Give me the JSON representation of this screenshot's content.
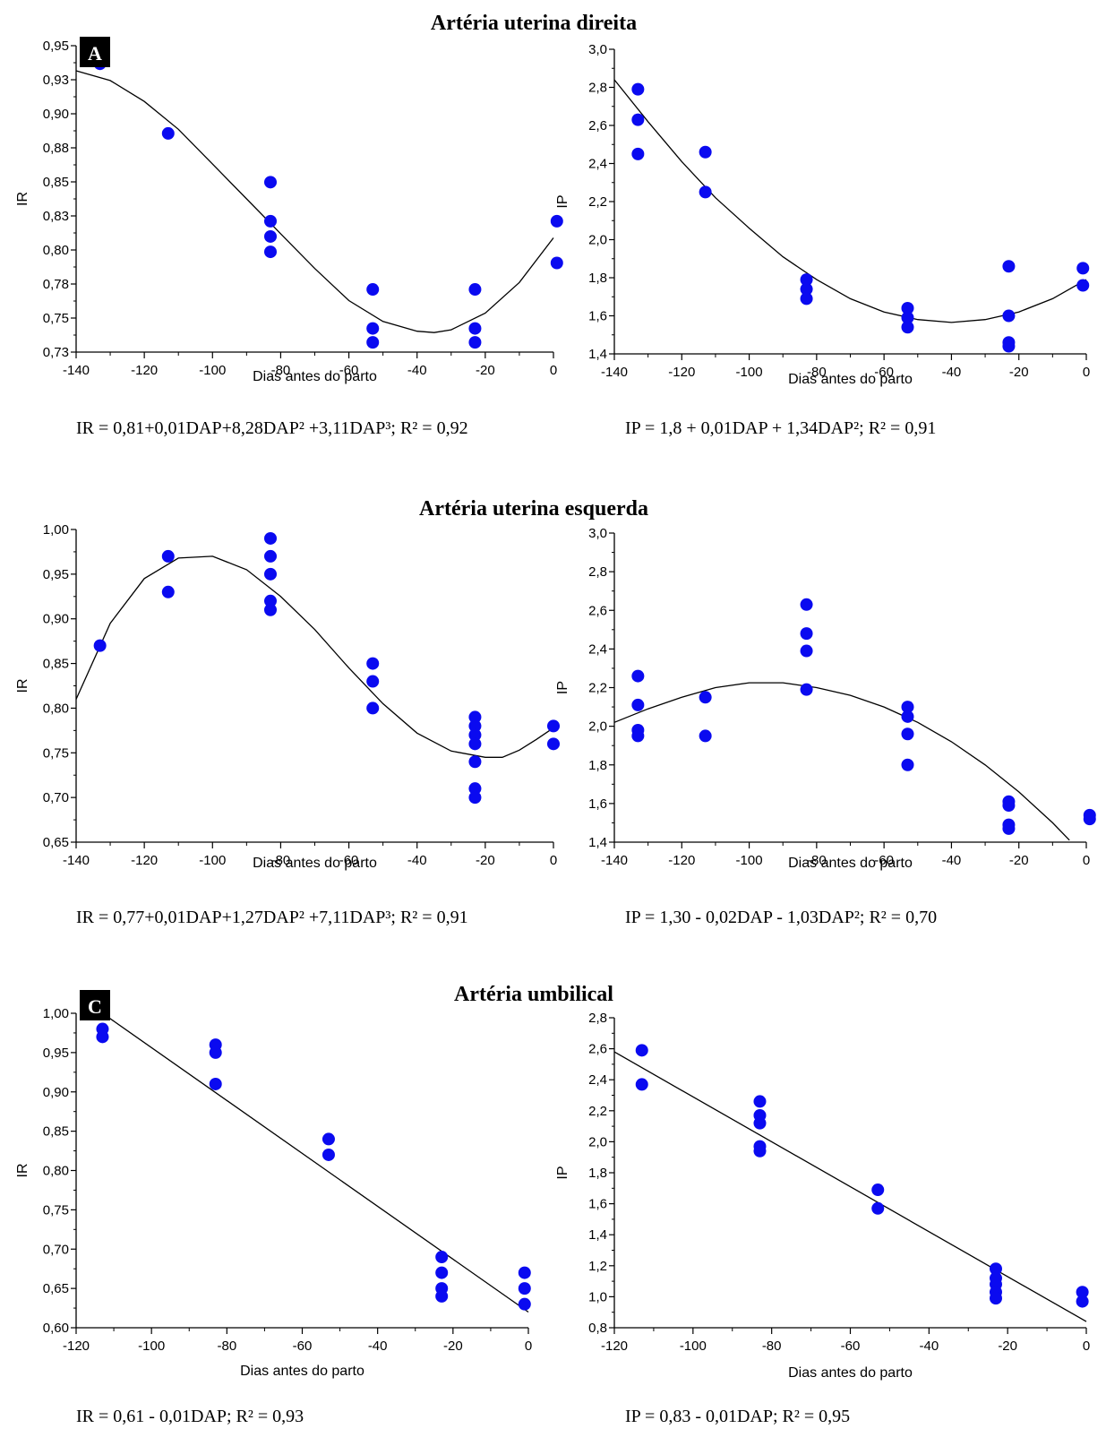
{
  "titles": [
    "Artéria uterina direita",
    "Artéria uterina esquerda",
    "Artéria umbilical"
  ],
  "colors": {
    "point": "#0a0af0",
    "line": "#000000",
    "axis": "#000000"
  },
  "chart_data": [
    {
      "type": "scatter",
      "panel_label": "A",
      "title": "Artéria uterina direita",
      "xlabel": "Dias antes do parto",
      "ylabel": "IR",
      "xlim": [
        -140,
        0
      ],
      "ylim": [
        0.73,
        0.95
      ],
      "xticks": [
        "-140",
        "-120",
        "-100",
        "-80",
        "-60",
        "-40",
        "-20",
        "0"
      ],
      "yticks": [
        "0,73",
        "0,75",
        "0,78",
        "0,80",
        "0,83",
        "0,85",
        "0,88",
        "0,90",
        "0,93",
        "0,95"
      ],
      "points": [
        [
          -133,
          0.937
        ],
        [
          -113,
          0.887
        ],
        [
          -83,
          0.852
        ],
        [
          -83,
          0.824
        ],
        [
          -83,
          0.813
        ],
        [
          -83,
          0.802
        ],
        [
          -53,
          0.775
        ],
        [
          -53,
          0.747
        ],
        [
          -53,
          0.737
        ],
        [
          -23,
          0.775
        ],
        [
          -23,
          0.747
        ],
        [
          -23,
          0.737
        ],
        [
          1,
          0.824
        ],
        [
          1,
          0.794
        ]
      ],
      "fit": [
        [
          -140,
          0.932
        ],
        [
          -130,
          0.925
        ],
        [
          -120,
          0.91
        ],
        [
          -110,
          0.89
        ],
        [
          -100,
          0.865
        ],
        [
          -90,
          0.84
        ],
        [
          -80,
          0.815
        ],
        [
          -70,
          0.79
        ],
        [
          -60,
          0.767
        ],
        [
          -50,
          0.752
        ],
        [
          -40,
          0.745
        ],
        [
          -35,
          0.744
        ],
        [
          -30,
          0.746
        ],
        [
          -20,
          0.758
        ],
        [
          -10,
          0.78
        ],
        [
          0,
          0.812
        ]
      ],
      "equation": "IR = 0,81+0,01DAP+8,28DAP² +3,11DAP³; R² = 0,92"
    },
    {
      "type": "scatter",
      "title": "Artéria uterina direita",
      "xlabel": "Dias antes do parto",
      "ylabel": "IP",
      "xlim": [
        -140,
        0
      ],
      "ylim": [
        1.4,
        3.0
      ],
      "xticks": [
        "-140",
        "-120",
        "-100",
        "-80",
        "-60",
        "-40",
        "-20",
        "0"
      ],
      "yticks": [
        "1,4",
        "1,6",
        "1,8",
        "2,0",
        "2,2",
        "2,4",
        "2,6",
        "2,8",
        "3,0"
      ],
      "points": [
        [
          -133,
          2.79
        ],
        [
          -133,
          2.63
        ],
        [
          -133,
          2.45
        ],
        [
          -113,
          2.46
        ],
        [
          -113,
          2.25
        ],
        [
          -83,
          1.79
        ],
        [
          -83,
          1.74
        ],
        [
          -83,
          1.69
        ],
        [
          -53,
          1.64
        ],
        [
          -53,
          1.59
        ],
        [
          -53,
          1.54
        ],
        [
          -23,
          1.86
        ],
        [
          -23,
          1.6
        ],
        [
          -23,
          1.46
        ],
        [
          -23,
          1.44
        ],
        [
          -1,
          1.85
        ],
        [
          -1,
          1.76
        ]
      ],
      "fit": [
        [
          -140,
          2.84
        ],
        [
          -130,
          2.62
        ],
        [
          -120,
          2.41
        ],
        [
          -110,
          2.22
        ],
        [
          -100,
          2.06
        ],
        [
          -90,
          1.91
        ],
        [
          -80,
          1.79
        ],
        [
          -70,
          1.69
        ],
        [
          -60,
          1.62
        ],
        [
          -50,
          1.58
        ],
        [
          -40,
          1.565
        ],
        [
          -30,
          1.58
        ],
        [
          -20,
          1.62
        ],
        [
          -10,
          1.69
        ],
        [
          0,
          1.79
        ]
      ],
      "equation": "IP = 1,8 + 0,01DAP + 1,34DAP²; R² = 0,91"
    },
    {
      "type": "scatter",
      "title": "Artéria uterina esquerda",
      "xlabel": "Dias antes do parto",
      "ylabel": "IR",
      "xlim": [
        -140,
        0
      ],
      "ylim": [
        0.65,
        1.0
      ],
      "xticks": [
        "-140",
        "-120",
        "-100",
        "-80",
        "-60",
        "-40",
        "-20",
        "0"
      ],
      "yticks": [
        "0,65",
        "0,70",
        "0,75",
        "0,80",
        "0,85",
        "0,90",
        "0,95",
        "1,00"
      ],
      "points": [
        [
          -133,
          0.87
        ],
        [
          -113,
          0.97
        ],
        [
          -113,
          0.93
        ],
        [
          -83,
          0.99
        ],
        [
          -83,
          0.97
        ],
        [
          -83,
          0.95
        ],
        [
          -83,
          0.92
        ],
        [
          -83,
          0.91
        ],
        [
          -53,
          0.85
        ],
        [
          -53,
          0.83
        ],
        [
          -53,
          0.8
        ],
        [
          -23,
          0.79
        ],
        [
          -23,
          0.78
        ],
        [
          -23,
          0.77
        ],
        [
          -23,
          0.76
        ],
        [
          -23,
          0.74
        ],
        [
          -23,
          0.71
        ],
        [
          -23,
          0.7
        ],
        [
          0,
          0.78
        ],
        [
          0,
          0.76
        ]
      ],
      "fit": [
        [
          -140,
          0.81
        ],
        [
          -130,
          0.895
        ],
        [
          -120,
          0.945
        ],
        [
          -110,
          0.968
        ],
        [
          -100,
          0.97
        ],
        [
          -90,
          0.955
        ],
        [
          -80,
          0.925
        ],
        [
          -70,
          0.888
        ],
        [
          -60,
          0.845
        ],
        [
          -50,
          0.805
        ],
        [
          -40,
          0.772
        ],
        [
          -30,
          0.752
        ],
        [
          -20,
          0.745
        ],
        [
          -15,
          0.745
        ],
        [
          -10,
          0.753
        ],
        [
          -5,
          0.765
        ],
        [
          0,
          0.778
        ]
      ],
      "equation": "IR = 0,77+0,01DAP+1,27DAP² +7,11DAP³; R² = 0,91"
    },
    {
      "type": "scatter",
      "title": "Artéria uterina esquerda",
      "xlabel": "Dias antes do parto",
      "ylabel": "IP",
      "xlim": [
        -140,
        0
      ],
      "ylim": [
        1.4,
        3.0
      ],
      "xticks": [
        "-140",
        "-120",
        "-100",
        "-80",
        "-60",
        "-40",
        "-20",
        "0"
      ],
      "yticks": [
        "1,4",
        "1,6",
        "1,8",
        "2,0",
        "2,2",
        "2,4",
        "2,6",
        "2,8",
        "3,0"
      ],
      "points": [
        [
          -133,
          2.26
        ],
        [
          -133,
          2.11
        ],
        [
          -133,
          1.98
        ],
        [
          -133,
          1.95
        ],
        [
          -113,
          2.15
        ],
        [
          -113,
          1.95
        ],
        [
          -83,
          2.63
        ],
        [
          -83,
          2.48
        ],
        [
          -83,
          2.39
        ],
        [
          -83,
          2.19
        ],
        [
          -53,
          2.1
        ],
        [
          -53,
          2.05
        ],
        [
          -53,
          1.96
        ],
        [
          -53,
          1.8
        ],
        [
          -23,
          1.61
        ],
        [
          -23,
          1.59
        ],
        [
          -23,
          1.49
        ],
        [
          -23,
          1.47
        ],
        [
          1,
          1.54
        ],
        [
          1,
          1.52
        ]
      ],
      "fit": [
        [
          -140,
          2.02
        ],
        [
          -130,
          2.09
        ],
        [
          -120,
          2.15
        ],
        [
          -110,
          2.2
        ],
        [
          -100,
          2.225
        ],
        [
          -90,
          2.225
        ],
        [
          -80,
          2.2
        ],
        [
          -70,
          2.16
        ],
        [
          -60,
          2.1
        ],
        [
          -50,
          2.02
        ],
        [
          -40,
          1.92
        ],
        [
          -30,
          1.8
        ],
        [
          -20,
          1.66
        ],
        [
          -10,
          1.5
        ],
        [
          -5,
          1.41
        ]
      ],
      "equation": "IP = 1,30 - 0,02DAP - 1,03DAP²; R² = 0,70"
    },
    {
      "type": "scatter",
      "panel_label": "C",
      "title": "Artéria umbilical",
      "xlabel": "Dias antes do parto",
      "ylabel": "IR",
      "xlim": [
        -120,
        0
      ],
      "ylim": [
        0.6,
        1.0
      ],
      "xticks": [
        "-120",
        "-100",
        "-80",
        "-60",
        "-40",
        "-20",
        "0"
      ],
      "yticks": [
        "0,60",
        "0,65",
        "0,70",
        "0,75",
        "0,80",
        "0,85",
        "0,90",
        "0,95",
        "1,00"
      ],
      "points": [
        [
          -113,
          0.98
        ],
        [
          -113,
          0.97
        ],
        [
          -83,
          0.96
        ],
        [
          -83,
          0.95
        ],
        [
          -83,
          0.91
        ],
        [
          -53,
          0.84
        ],
        [
          -53,
          0.82
        ],
        [
          -23,
          0.69
        ],
        [
          -23,
          0.67
        ],
        [
          -23,
          0.65
        ],
        [
          -23,
          0.64
        ],
        [
          -1,
          0.67
        ],
        [
          -1,
          0.65
        ],
        [
          -1,
          0.63
        ]
      ],
      "fit": [
        [
          -113,
          1.0
        ],
        [
          0,
          0.62
        ]
      ],
      "equation": "IR = 0,61 - 0,01DAP; R² = 0,93"
    },
    {
      "type": "scatter",
      "title": "Artéria umbilical",
      "xlabel": "Dias antes do parto",
      "ylabel": "IP",
      "xlim": [
        -120,
        0
      ],
      "ylim": [
        0.8,
        2.8
      ],
      "xticks": [
        "-120",
        "-100",
        "-80",
        "-60",
        "-40",
        "-20",
        "0"
      ],
      "yticks": [
        "0,8",
        "1,0",
        "1,2",
        "1,4",
        "1,6",
        "1,8",
        "2,0",
        "2,2",
        "2,4",
        "2,6",
        "2,8"
      ],
      "points": [
        [
          -113,
          2.59
        ],
        [
          -113,
          2.37
        ],
        [
          -83,
          2.26
        ],
        [
          -83,
          2.17
        ],
        [
          -83,
          2.12
        ],
        [
          -83,
          1.97
        ],
        [
          -83,
          1.94
        ],
        [
          -53,
          1.69
        ],
        [
          -53,
          1.57
        ],
        [
          -23,
          1.18
        ],
        [
          -23,
          1.12
        ],
        [
          -23,
          1.08
        ],
        [
          -23,
          1.03
        ],
        [
          -23,
          0.99
        ],
        [
          -1,
          1.03
        ],
        [
          -1,
          0.97
        ]
      ],
      "fit": [
        [
          -120,
          2.58
        ],
        [
          0,
          0.84
        ]
      ],
      "equation": "IP = 0,83 - 0,01DAP; R² = 0,95"
    }
  ]
}
